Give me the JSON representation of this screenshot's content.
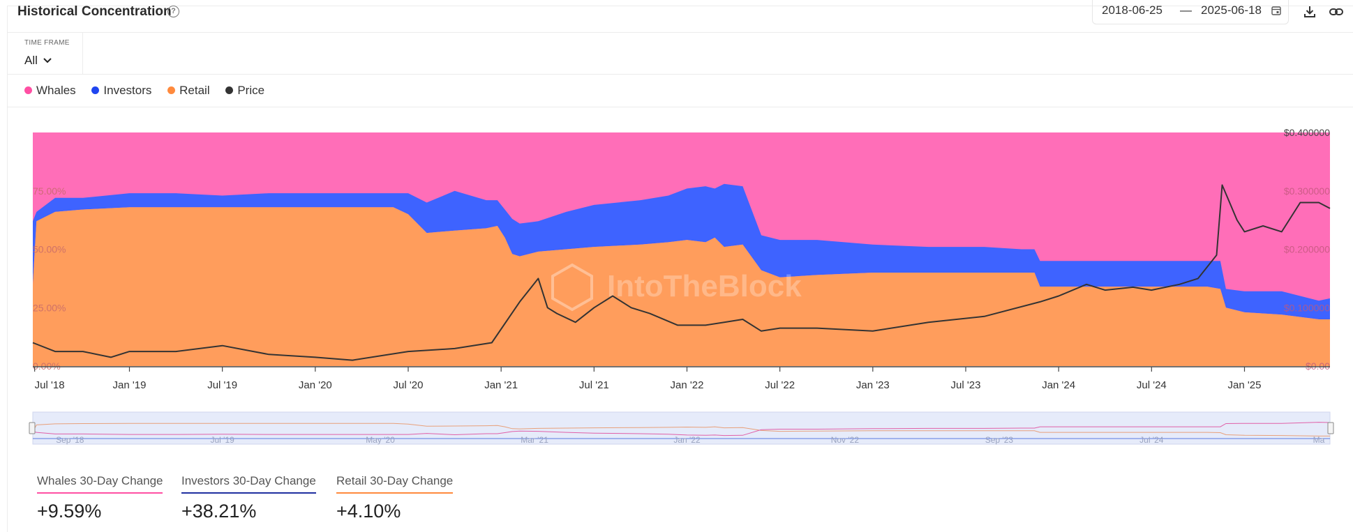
{
  "header": {
    "title": "Historical Concentration",
    "help_icon": "question-circle-icon",
    "date_start": "2018-06-25",
    "date_separator": "—",
    "date_end": "2025-06-18",
    "calendar_icon": "calendar-icon",
    "download_icon": "download-icon",
    "link_icon": "link-icon"
  },
  "timeframe": {
    "label": "TIME FRAME",
    "value": "All"
  },
  "legend": [
    {
      "label": "Whales",
      "color": "#ff4fa3"
    },
    {
      "label": "Investors",
      "color": "#1f45f0"
    },
    {
      "label": "Retail",
      "color": "#ff8a3d"
    },
    {
      "label": "Price",
      "color": "#333333"
    }
  ],
  "watermark": "IntoTheBlock",
  "chart_data": {
    "type": "area",
    "stacked": true,
    "x_tick_labels": [
      "Jul '18",
      "Jan '19",
      "Jul '19",
      "Jan '20",
      "Jul '20",
      "Jan '21",
      "Jul '21",
      "Jan '22",
      "Jul '22",
      "Jan '23",
      "Jul '23",
      "Jan '24",
      "Jul '24",
      "Jan '25"
    ],
    "left_axis": {
      "labels": [
        "0.00%",
        "25.00%",
        "50.00%",
        "75.00%"
      ],
      "range": [
        0,
        100
      ]
    },
    "right_axis": {
      "labels": [
        "$0.00",
        "$0.100000",
        "$0.200000",
        "$0.300000",
        "$0.400000"
      ],
      "range": [
        0,
        0.4
      ]
    },
    "x_range": [
      2018.48,
      2025.46
    ],
    "series": [
      {
        "name": "Retail",
        "color": "#ff9d5c",
        "unit": "%",
        "x": [
          2018.48,
          2018.5,
          2018.6,
          2018.75,
          2019.0,
          2019.25,
          2019.5,
          2019.75,
          2020.0,
          2020.25,
          2020.42,
          2020.5,
          2020.6,
          2020.75,
          2020.92,
          2020.98,
          2021.02,
          2021.06,
          2021.1,
          2021.2,
          2021.35,
          2021.5,
          2021.75,
          2021.9,
          2022.0,
          2022.1,
          2022.15,
          2022.2,
          2022.3,
          2022.4,
          2022.5,
          2022.7,
          2023.0,
          2023.3,
          2023.6,
          2023.8,
          2023.87,
          2023.9,
          2024.2,
          2024.5,
          2024.7,
          2024.8,
          2024.87,
          2024.9,
          2025.0,
          2025.2,
          2025.4,
          2025.46
        ],
        "y": [
          35,
          62,
          66,
          67,
          68,
          68,
          68,
          68,
          68,
          68,
          68,
          65,
          57,
          58,
          59,
          60,
          55,
          48,
          47,
          49,
          50,
          51,
          52,
          53,
          54,
          53,
          55,
          51,
          52,
          41,
          38,
          39,
          40,
          40,
          40,
          40,
          40,
          34,
          34,
          34,
          34,
          34,
          33,
          25,
          23,
          22,
          20,
          20
        ]
      },
      {
        "name": "Investors",
        "color": "#3e63ff",
        "unit": "%",
        "x": [
          2018.48,
          2018.5,
          2018.6,
          2018.75,
          2019.0,
          2019.25,
          2019.5,
          2019.75,
          2020.0,
          2020.25,
          2020.42,
          2020.5,
          2020.6,
          2020.75,
          2020.92,
          2020.98,
          2021.02,
          2021.06,
          2021.1,
          2021.2,
          2021.35,
          2021.5,
          2021.75,
          2021.9,
          2022.0,
          2022.1,
          2022.15,
          2022.2,
          2022.3,
          2022.4,
          2022.5,
          2022.7,
          2023.0,
          2023.3,
          2023.6,
          2023.8,
          2023.87,
          2023.9,
          2024.2,
          2024.5,
          2024.7,
          2024.8,
          2024.87,
          2024.9,
          2025.0,
          2025.2,
          2025.4,
          2025.46
        ],
        "y": [
          27,
          4,
          6,
          5,
          6,
          6,
          5,
          6,
          6,
          6,
          6,
          9,
          13,
          17,
          12,
          11,
          12,
          15,
          14,
          13,
          16,
          18,
          19,
          20,
          22,
          24,
          21,
          27,
          25,
          15,
          16,
          15,
          12,
          11,
          11,
          10,
          10,
          11,
          11,
          11,
          11,
          11,
          12,
          8,
          9,
          10,
          8,
          9
        ]
      },
      {
        "name": "Whales",
        "color": "#ff6eb8",
        "unit": "%",
        "x": [
          2018.48,
          2025.46
        ],
        "y_note": "remainder to 100%",
        "y": [
          100,
          100
        ]
      },
      {
        "name": "Price",
        "color": "#333333",
        "unit": "$",
        "x": [
          2018.48,
          2018.6,
          2018.75,
          2018.9,
          2019.0,
          2019.25,
          2019.5,
          2019.75,
          2020.0,
          2020.2,
          2020.5,
          2020.75,
          2020.95,
          2021.1,
          2021.2,
          2021.25,
          2021.3,
          2021.4,
          2021.5,
          2021.6,
          2021.7,
          2021.8,
          2021.95,
          2022.1,
          2022.2,
          2022.3,
          2022.4,
          2022.5,
          2022.7,
          2023.0,
          2023.3,
          2023.6,
          2023.9,
          2024.0,
          2024.15,
          2024.25,
          2024.4,
          2024.5,
          2024.65,
          2024.75,
          2024.85,
          2024.88,
          2024.92,
          2024.96,
          2025.0,
          2025.1,
          2025.2,
          2025.3,
          2025.4,
          2025.46
        ],
        "y": [
          0.04,
          0.025,
          0.025,
          0.015,
          0.025,
          0.025,
          0.035,
          0.02,
          0.015,
          0.01,
          0.025,
          0.03,
          0.04,
          0.11,
          0.15,
          0.1,
          0.09,
          0.075,
          0.1,
          0.12,
          0.1,
          0.09,
          0.07,
          0.07,
          0.075,
          0.08,
          0.06,
          0.065,
          0.065,
          0.06,
          0.075,
          0.085,
          0.11,
          0.12,
          0.14,
          0.13,
          0.135,
          0.13,
          0.14,
          0.15,
          0.19,
          0.31,
          0.28,
          0.25,
          0.23,
          0.24,
          0.23,
          0.28,
          0.28,
          0.27
        ]
      }
    ],
    "navigator_ticks": [
      "Sep '18",
      "Jul '19",
      "May '20",
      "Mar '21",
      "Jan '22",
      "Nov '22",
      "Sep '23",
      "Jul '24",
      "Ma"
    ]
  },
  "stats": [
    {
      "label": "Whales 30-Day Change",
      "value": "+9.59%",
      "color": "#ff4fa3"
    },
    {
      "label": "Investors 30-Day Change",
      "value": "+38.21%",
      "color": "#1f2fa0"
    },
    {
      "label": "Retail 30-Day Change",
      "value": "+4.10%",
      "color": "#ff8a3d"
    }
  ]
}
